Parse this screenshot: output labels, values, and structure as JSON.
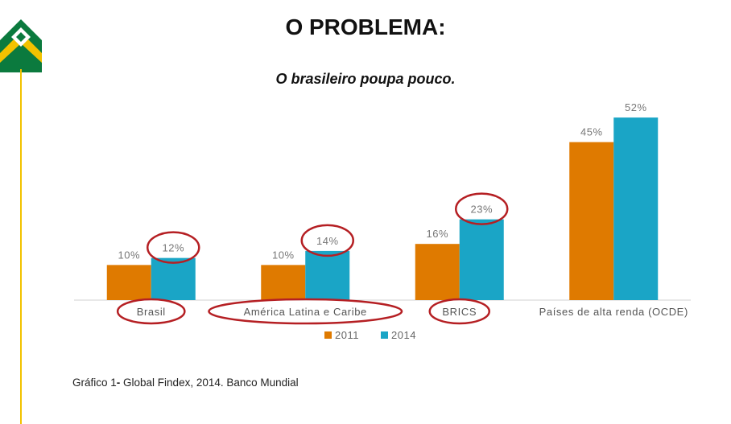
{
  "title": "O PROBLEMA:",
  "subtitle": "O brasileiro poupa pouco.",
  "caption": {
    "prefix": "Gráfico 1",
    "sep": "-",
    "text": " Global Findex, 2014. Banco Mundial"
  },
  "colors": {
    "s2011": "#DF7A00",
    "s2014": "#1AA5C6",
    "highlight_circle": "#B51F23",
    "accent_yellow": "#F2C200",
    "logo_green": "#0B7A3E"
  },
  "chart_data": {
    "type": "bar",
    "categories": [
      "Brasil",
      "América Latina e Caribe",
      "BRICS",
      "Países de alta renda (OCDE)"
    ],
    "series": [
      {
        "name": "2011",
        "values": [
          10,
          10,
          16,
          45
        ],
        "labels": [
          "10%",
          "10%",
          "16%",
          "45%"
        ]
      },
      {
        "name": "2014",
        "values": [
          12,
          14,
          23,
          52
        ],
        "labels": [
          "12%",
          "14%",
          "23%",
          "52%"
        ]
      }
    ],
    "ylim": [
      0,
      55
    ],
    "legend": "bottom-center",
    "highlighted_labels": [
      "Brasil:2014",
      "América Latina e Caribe:2014",
      "BRICS:2014"
    ],
    "highlighted_categories": [
      "Brasil",
      "América Latina e Caribe",
      "BRICS"
    ]
  }
}
